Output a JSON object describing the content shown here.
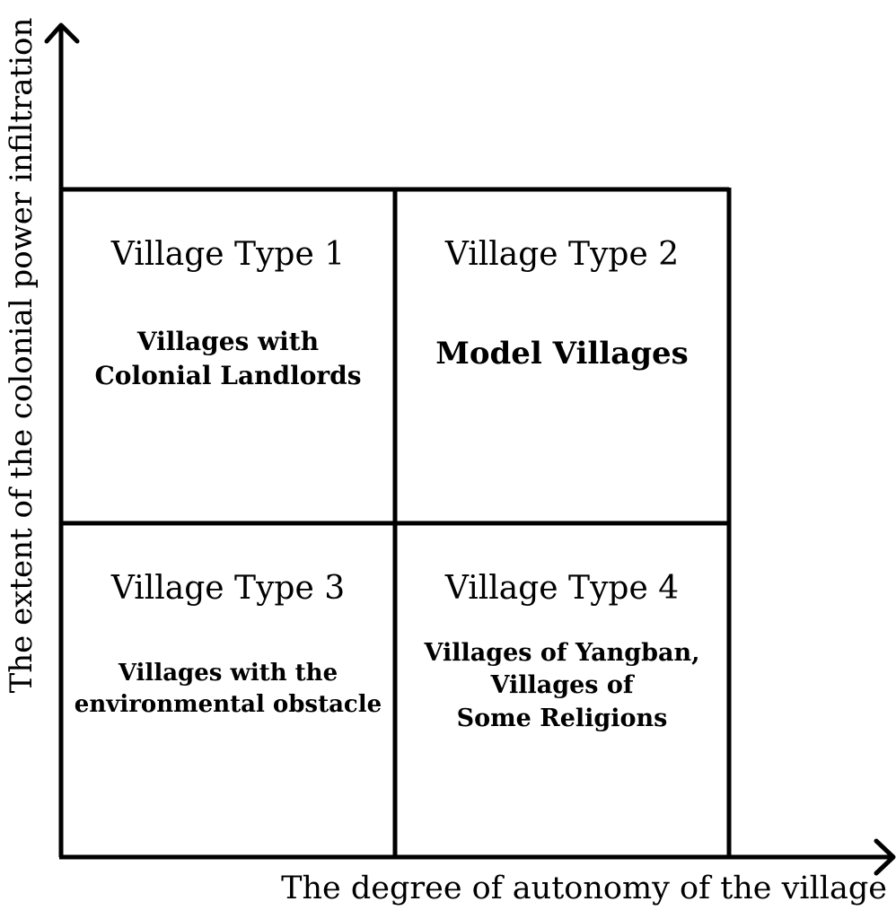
{
  "axes": {
    "x_label": "The degree of autonomy of the village",
    "y_label": "The extent of the colonial power infiltration"
  },
  "cells": {
    "type1": {
      "title": "Village Type 1",
      "lines": [
        "Villages with",
        "Colonial Landlords"
      ]
    },
    "type2": {
      "title": "Village Type 2",
      "lines": [
        "Model Villages"
      ]
    },
    "type3": {
      "title": "Village Type 3",
      "lines": [
        "Villages with the",
        "environmental obstacle"
      ]
    },
    "type4": {
      "title": "Village Type 4",
      "lines": [
        "Villages of Yangban,",
        "Villages of",
        "Some Religions"
      ]
    }
  },
  "colors": {
    "line": "#000000",
    "background": "#ffffff"
  }
}
